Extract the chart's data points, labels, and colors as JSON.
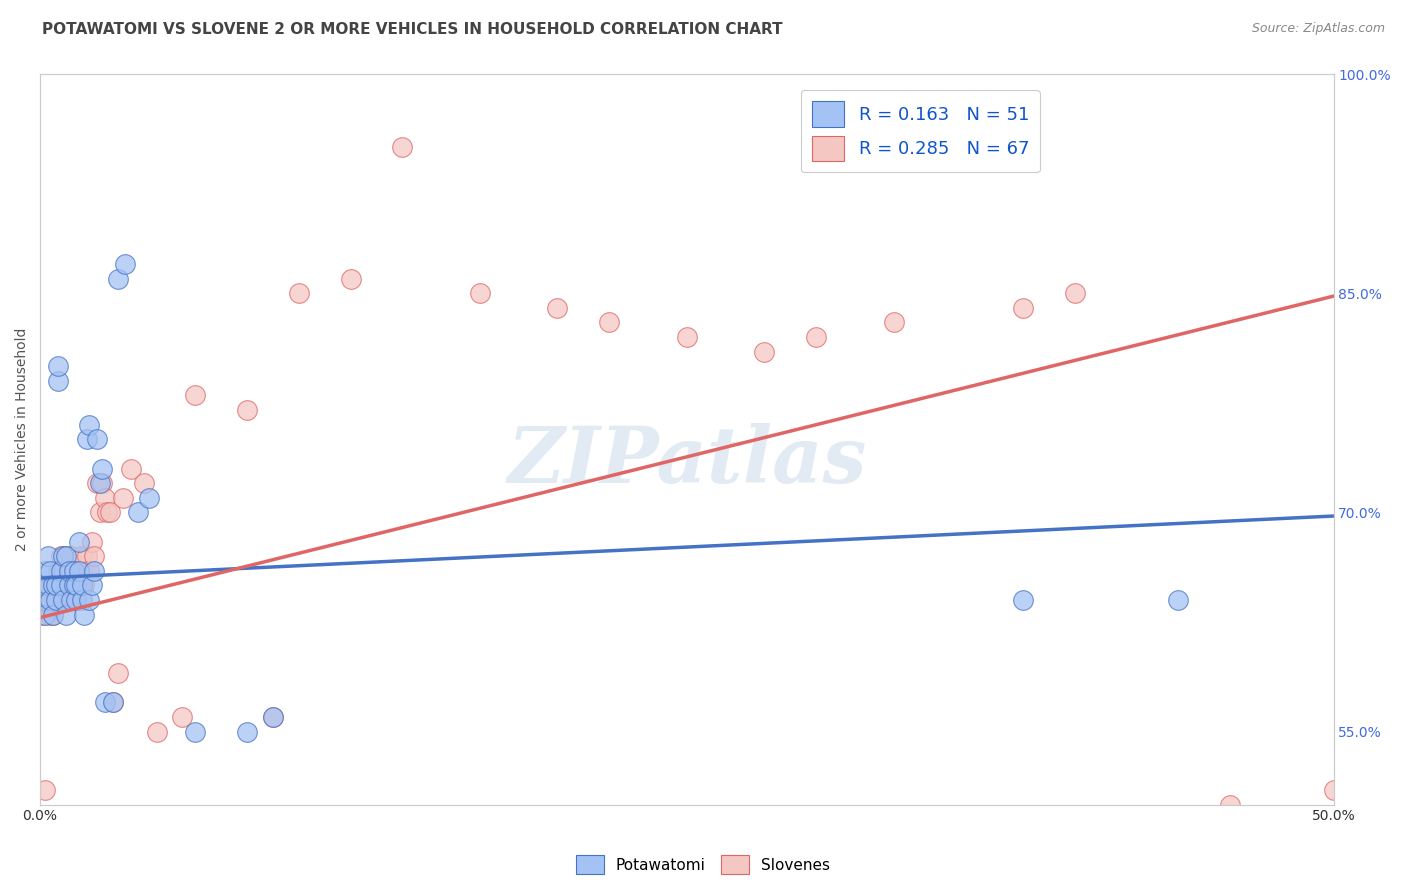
{
  "title": "POTAWATOMI VS SLOVENE 2 OR MORE VEHICLES IN HOUSEHOLD CORRELATION CHART",
  "source": "Source: ZipAtlas.com",
  "ylabel": "2 or more Vehicles in Household",
  "watermark": "ZIPatlas",
  "r1": 0.163,
  "n1": 51,
  "r2": 0.285,
  "n2": 67,
  "xmin": 0.0,
  "xmax": 0.5,
  "ymin": 0.5,
  "ymax": 1.0,
  "color_blue": "#a4c2f4",
  "color_pink": "#f4c7c3",
  "color_blue_line": "#4472c4",
  "color_pink_line": "#e06666",
  "color_blue_dark": "#1155cc",
  "grid_color": "#cccccc",
  "tick_color_right": "#4169e1",
  "blue_intercept": 0.655,
  "blue_slope": 0.085,
  "pink_intercept": 0.628,
  "pink_slope": 0.44,
  "potawatomi_x": [
    0.001,
    0.001,
    0.002,
    0.002,
    0.003,
    0.003,
    0.004,
    0.004,
    0.005,
    0.005,
    0.006,
    0.006,
    0.007,
    0.007,
    0.008,
    0.008,
    0.009,
    0.009,
    0.01,
    0.01,
    0.011,
    0.011,
    0.012,
    0.013,
    0.013,
    0.014,
    0.014,
    0.015,
    0.015,
    0.016,
    0.016,
    0.017,
    0.018,
    0.019,
    0.019,
    0.02,
    0.021,
    0.022,
    0.023,
    0.024,
    0.025,
    0.028,
    0.03,
    0.033,
    0.038,
    0.042,
    0.06,
    0.08,
    0.09,
    0.38,
    0.44
  ],
  "potawatomi_y": [
    0.64,
    0.65,
    0.63,
    0.66,
    0.67,
    0.65,
    0.64,
    0.66,
    0.65,
    0.63,
    0.64,
    0.65,
    0.79,
    0.8,
    0.66,
    0.65,
    0.67,
    0.64,
    0.63,
    0.67,
    0.65,
    0.66,
    0.64,
    0.65,
    0.66,
    0.64,
    0.65,
    0.66,
    0.68,
    0.64,
    0.65,
    0.63,
    0.75,
    0.76,
    0.64,
    0.65,
    0.66,
    0.75,
    0.72,
    0.73,
    0.57,
    0.57,
    0.86,
    0.87,
    0.7,
    0.71,
    0.55,
    0.55,
    0.56,
    0.64,
    0.64
  ],
  "slovene_x": [
    0.001,
    0.001,
    0.002,
    0.002,
    0.003,
    0.003,
    0.004,
    0.004,
    0.005,
    0.005,
    0.006,
    0.006,
    0.007,
    0.007,
    0.008,
    0.008,
    0.009,
    0.009,
    0.01,
    0.01,
    0.011,
    0.011,
    0.012,
    0.012,
    0.013,
    0.013,
    0.014,
    0.014,
    0.015,
    0.015,
    0.016,
    0.016,
    0.017,
    0.018,
    0.019,
    0.02,
    0.021,
    0.022,
    0.023,
    0.024,
    0.025,
    0.026,
    0.027,
    0.028,
    0.03,
    0.032,
    0.035,
    0.04,
    0.045,
    0.055,
    0.06,
    0.08,
    0.09,
    0.1,
    0.12,
    0.14,
    0.17,
    0.2,
    0.22,
    0.25,
    0.28,
    0.3,
    0.33,
    0.38,
    0.4,
    0.46,
    0.5
  ],
  "slovene_y": [
    0.63,
    0.64,
    0.51,
    0.65,
    0.64,
    0.65,
    0.63,
    0.64,
    0.63,
    0.65,
    0.64,
    0.65,
    0.66,
    0.65,
    0.67,
    0.66,
    0.65,
    0.66,
    0.67,
    0.65,
    0.66,
    0.64,
    0.66,
    0.67,
    0.65,
    0.66,
    0.64,
    0.65,
    0.66,
    0.65,
    0.67,
    0.66,
    0.65,
    0.67,
    0.66,
    0.68,
    0.67,
    0.72,
    0.7,
    0.72,
    0.71,
    0.7,
    0.7,
    0.57,
    0.59,
    0.71,
    0.73,
    0.72,
    0.55,
    0.56,
    0.78,
    0.77,
    0.56,
    0.85,
    0.86,
    0.95,
    0.85,
    0.84,
    0.83,
    0.82,
    0.81,
    0.82,
    0.83,
    0.84,
    0.85,
    0.5,
    0.51
  ]
}
